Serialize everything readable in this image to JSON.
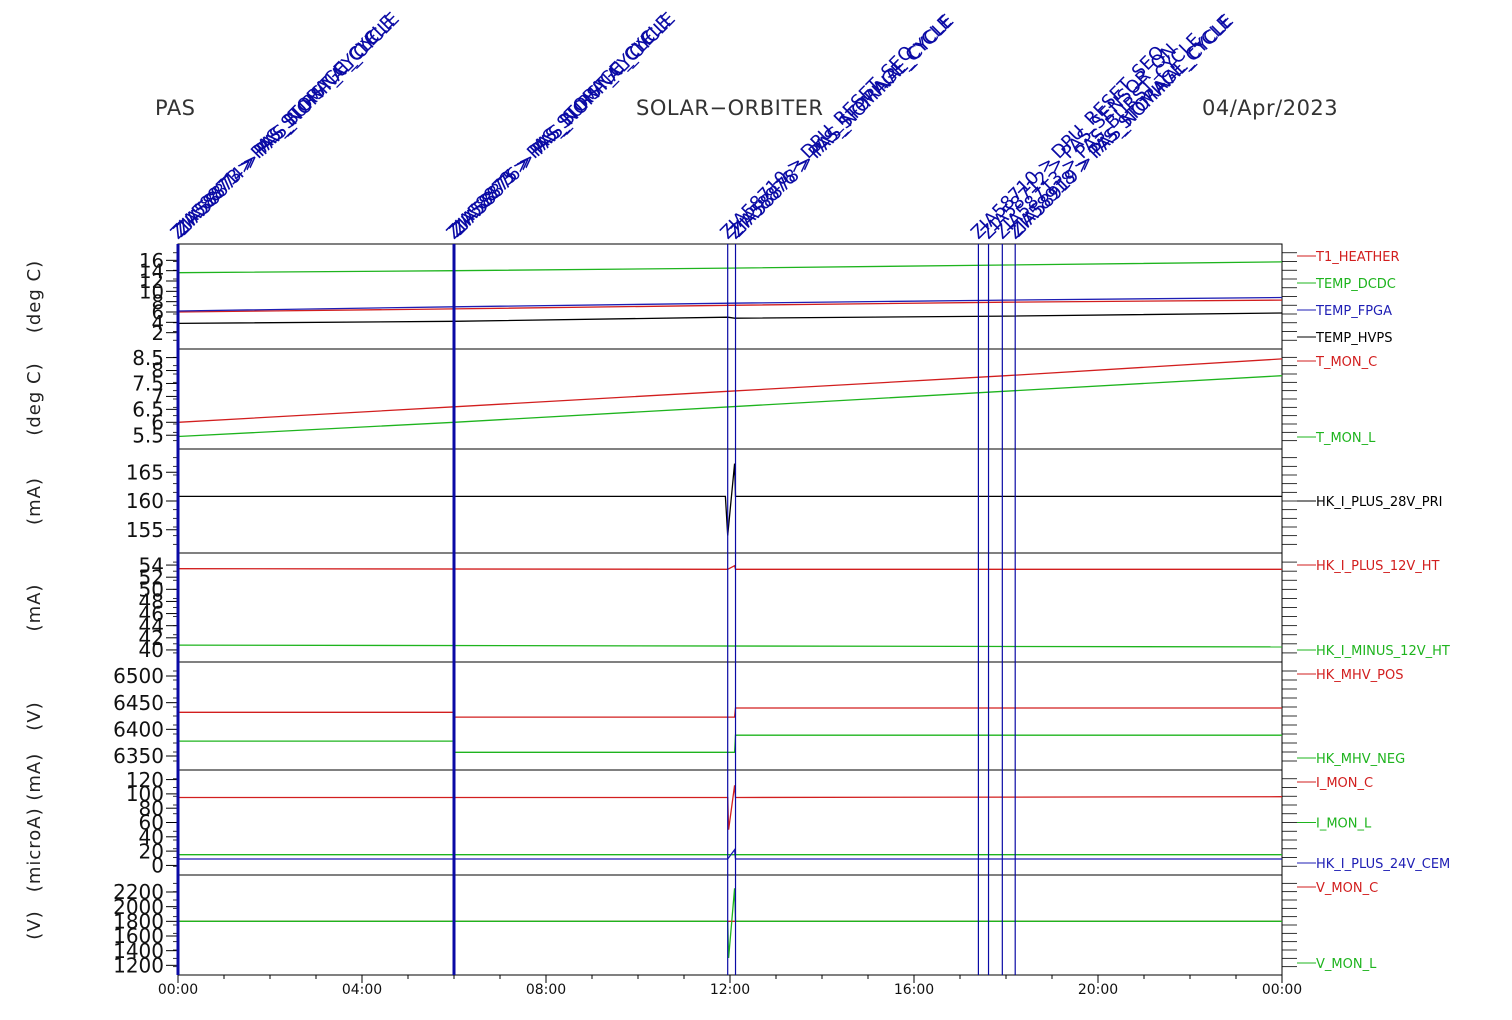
{
  "header": {
    "instrument": "PAS",
    "mission": "SOLAR−ORBITER",
    "date": "04/Apr/2023"
  },
  "colors": {
    "red": "#d21e1e",
    "green": "#1eb41e",
    "blue": "#1e1eb4",
    "black": "#000000",
    "marker": "#0a0aa5"
  },
  "x_axis": {
    "ticks": [
      "00:00",
      "04:00",
      "08:00",
      "12:00",
      "16:00",
      "20:00",
      "00:00"
    ],
    "range_hours": [
      0,
      24
    ]
  },
  "event_markers": [
    {
      "time_h": 0.0,
      "labels": [
        "ZIA58871 > PAS_STORAGE_CYCLE",
        "ZIA58873 > PAS_BURST_CYCLE",
        "ZIA58874 > PAS_NOMINAL_CYCLE"
      ],
      "bold": true
    },
    {
      "time_h": 6.0,
      "labels": [
        "ZIA58873 > PAS_STORAGE_CYCLE",
        "ZIA58875 > PAS_BURST_CYCLE",
        "ZIA58876 > PAS_NOMINAL_CYCLE"
      ],
      "bold": true
    },
    {
      "time_h": 11.95,
      "labels": [
        "ZIA58710 > DPU_RESET_SEQ"
      ],
      "bold": false
    },
    {
      "time_h": 12.12,
      "labels": [
        "ZIA58876 > PAS_STORAGE_CYCLE",
        "ZIA58878 > PAS_NOMINAL_CYCLE"
      ],
      "bold": false
    },
    {
      "time_h": 17.4,
      "labels": [
        "ZIA58710 > DPU_RESET_SEQ"
      ],
      "bold": false
    },
    {
      "time_h": 17.62,
      "labels": [
        "ZIA58712 > PAS_SENSOR_ON"
      ],
      "bold": false
    },
    {
      "time_h": 17.92,
      "labels": [
        "ZIA58713 > PAS_BURST_CYCLE"
      ],
      "bold": false
    },
    {
      "time_h": 18.2,
      "labels": [
        "ZIA58918 > PAS_STORAGE_CYCLE",
        "ZIA58919 > PAS_NOMINAL_CYCLE"
      ],
      "bold": false
    }
  ],
  "chart_data": [
    {
      "type": "line",
      "ylabel": "(deg C)",
      "ylim": [
        0,
        18
      ],
      "yticks": [
        2,
        4,
        6,
        8,
        10,
        12,
        14,
        16
      ],
      "series": [
        {
          "name": "T1_HEATHER",
          "color": "red",
          "x": [
            0,
            6,
            12,
            18,
            24
          ],
          "y": [
            6.0,
            6.6,
            7.3,
            7.9,
            8.3
          ]
        },
        {
          "name": "TEMP_DCDC",
          "color": "green",
          "x": [
            0,
            6,
            12,
            18,
            24
          ],
          "y": [
            13.6,
            14.0,
            14.5,
            15.1,
            15.7
          ]
        },
        {
          "name": "TEMP_FPGA",
          "color": "blue",
          "x": [
            0,
            6,
            12,
            18,
            24
          ],
          "y": [
            6.2,
            7.0,
            7.7,
            8.3,
            8.8
          ]
        },
        {
          "name": "TEMP_HVPS",
          "color": "black",
          "x": [
            0,
            6,
            11.95,
            12.1,
            18,
            24
          ],
          "y": [
            3.8,
            4.2,
            5.0,
            4.8,
            5.2,
            5.8
          ]
        }
      ]
    },
    {
      "type": "line",
      "ylabel": "(deg C)",
      "ylim": [
        5.2,
        8.6
      ],
      "yticks": [
        5.5,
        6.0,
        6.5,
        7.0,
        7.5,
        8.0,
        8.5
      ],
      "series": [
        {
          "name": "T_MON_C",
          "color": "red",
          "x": [
            0,
            6,
            12,
            18,
            24
          ],
          "y": [
            6.0,
            6.6,
            7.2,
            7.8,
            8.45
          ]
        },
        {
          "name": "T_MON_L",
          "color": "green",
          "x": [
            0,
            6,
            12,
            18,
            24
          ],
          "y": [
            5.45,
            6.0,
            6.6,
            7.2,
            7.8
          ]
        }
      ]
    },
    {
      "type": "line",
      "ylabel": "(mA)",
      "ylim": [
        152,
        168
      ],
      "yticks": [
        155,
        160,
        165
      ],
      "series": [
        {
          "name": "HK_I_PLUS_28V_PRI",
          "color": "black",
          "x": [
            0,
            11.9,
            11.95,
            12.1,
            12.12,
            24
          ],
          "y": [
            160.8,
            160.8,
            154.0,
            166.5,
            160.8,
            160.8
          ]
        }
      ]
    },
    {
      "type": "line",
      "ylabel": "(mA)",
      "ylim": [
        39,
        55
      ],
      "yticks": [
        40,
        42,
        44,
        46,
        48,
        50,
        52,
        54
      ],
      "series": [
        {
          "name": "HK_I_PLUS_12V_HT",
          "color": "red",
          "x": [
            0,
            11.95,
            12.1,
            12.12,
            24
          ],
          "y": [
            53.4,
            53.3,
            53.9,
            53.3,
            53.3
          ]
        },
        {
          "name": "HK_I_MINUS_12V_HT",
          "color": "green",
          "x": [
            0,
            24
          ],
          "y": [
            40.8,
            40.5
          ]
        }
      ]
    },
    {
      "type": "line",
      "ylabel": "(V)",
      "ylim": [
        6335,
        6515
      ],
      "yticks": [
        6350,
        6400,
        6450,
        6500
      ],
      "series": [
        {
          "name": "HK_MHV_POS",
          "color": "red",
          "x": [
            0,
            6,
            6,
            12.1,
            12.12,
            24
          ],
          "y": [
            6432,
            6432,
            6423,
            6423,
            6440,
            6440
          ]
        },
        {
          "name": "HK_MHV_NEG",
          "color": "green",
          "x": [
            0,
            6,
            6,
            12.1,
            12.12,
            24
          ],
          "y": [
            6378,
            6378,
            6357,
            6357,
            6389,
            6389
          ]
        }
      ]
    },
    {
      "type": "line",
      "ylabel": "(microA) (mA)",
      "ylim": [
        -5,
        125
      ],
      "yticks": [
        0,
        20,
        40,
        60,
        80,
        100,
        120
      ],
      "series": [
        {
          "name": "I_MON_C",
          "color": "red",
          "x": [
            0,
            11.95,
            11.97,
            12.1,
            12.12,
            24
          ],
          "y": [
            95,
            95,
            50,
            112,
            95,
            96
          ]
        },
        {
          "name": "I_MON_L",
          "color": "green",
          "x": [
            0,
            24
          ],
          "y": [
            15,
            15
          ]
        },
        {
          "name": "HK_I_PLUS_24V_CEM",
          "color": "blue",
          "x": [
            0,
            11.95,
            12.1,
            12.12,
            24
          ],
          "y": [
            9,
            9,
            22,
            9,
            9
          ]
        }
      ]
    },
    {
      "type": "line",
      "ylabel": "(V)",
      "ylim": [
        1150,
        2350
      ],
      "yticks": [
        1200,
        1400,
        1600,
        1800,
        2000,
        2200
      ],
      "series": [
        {
          "name": "V_MON_C",
          "color": "red",
          "x": [
            0,
            24
          ],
          "y": [
            1800,
            1800
          ]
        },
        {
          "name": "V_MON_L",
          "color": "green",
          "x": [
            0,
            11.95,
            11.97,
            12.1,
            12.12,
            24
          ],
          "y": [
            1800,
            1800,
            1300,
            2250,
            1800,
            1800
          ]
        }
      ]
    }
  ]
}
